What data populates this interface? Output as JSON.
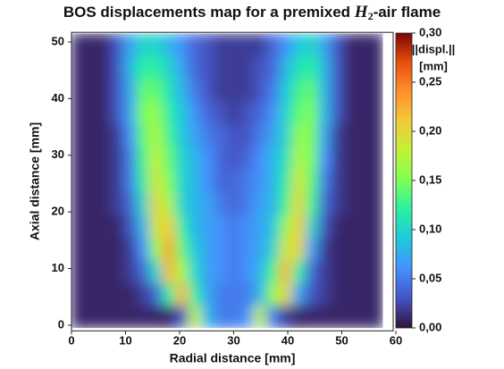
{
  "chart_data": {
    "type": "heatmap",
    "title": [
      "BOS displacements map for a premixed ",
      "H",
      "2",
      "-air flame"
    ],
    "x_label": "Radial distance [mm]",
    "y_label": "Axial distance [mm]",
    "colorbar_label": [
      "||displ.||",
      "[mm]"
    ],
    "xlim": [
      0,
      59.5
    ],
    "ylim": [
      -1,
      51.7
    ],
    "xticks": [
      0,
      10,
      20,
      30,
      40,
      50,
      60
    ],
    "yticks": [
      0,
      10,
      20,
      30,
      40,
      50
    ],
    "zlim": [
      0,
      0.3
    ],
    "zticks": [
      {
        "value": 0,
        "label": "0,00"
      },
      {
        "value": 0.05,
        "label": "0,05"
      },
      {
        "value": 0.1,
        "label": "0,10"
      },
      {
        "value": 0.15,
        "label": "0,15"
      },
      {
        "value": 0.2,
        "label": "0,20"
      },
      {
        "value": 0.25,
        "label": "0,25"
      },
      {
        "value": 0.3,
        "label": "0,30"
      }
    ],
    "colormap": [
      "#30123b",
      "#4454c4",
      "#4490fe",
      "#1fc8de",
      "#29efa2",
      "#7dff56",
      "#c1f334",
      "#f1ca3a",
      "#fe922a",
      "#ea4f0d",
      "#7a0403"
    ],
    "x": [
      1.2,
      3.6,
      6.0,
      8.4,
      10.8,
      13.2,
      15.6,
      18.0,
      20.4,
      22.8,
      25.2,
      27.6,
      30.0,
      32.4,
      34.8,
      37.2,
      39.6,
      42.0,
      44.4,
      46.8,
      49.2,
      51.6,
      54.0,
      56.4
    ],
    "y": [
      1.5,
      5.5,
      9.5,
      13.5,
      17.5,
      21.5,
      25.5,
      29.5,
      33.5,
      37.5,
      41.5,
      45.5,
      49.5
    ],
    "z": [
      [
        0.01,
        0.01,
        0.01,
        0.01,
        0.01,
        0.01,
        0.01,
        0.01,
        0.03,
        0.18,
        0.08,
        0.05,
        0.05,
        0.06,
        0.18,
        0.05,
        0.02,
        0.01,
        0.01,
        0.01,
        0.01,
        0.01,
        0.01,
        0.01
      ],
      [
        0.01,
        0.01,
        0.01,
        0.01,
        0.01,
        0.02,
        0.04,
        0.12,
        0.22,
        0.12,
        0.07,
        0.05,
        0.05,
        0.05,
        0.08,
        0.16,
        0.2,
        0.07,
        0.03,
        0.02,
        0.01,
        0.01,
        0.01,
        0.01
      ],
      [
        0.01,
        0.01,
        0.01,
        0.01,
        0.02,
        0.04,
        0.1,
        0.22,
        0.17,
        0.1,
        0.07,
        0.06,
        0.05,
        0.06,
        0.08,
        0.13,
        0.22,
        0.12,
        0.04,
        0.02,
        0.01,
        0.01,
        0.01,
        0.01
      ],
      [
        0.01,
        0.01,
        0.01,
        0.01,
        0.02,
        0.06,
        0.16,
        0.23,
        0.14,
        0.09,
        0.07,
        0.06,
        0.05,
        0.06,
        0.07,
        0.1,
        0.19,
        0.2,
        0.07,
        0.02,
        0.01,
        0.01,
        0.01,
        0.01
      ],
      [
        0.01,
        0.01,
        0.01,
        0.01,
        0.03,
        0.08,
        0.19,
        0.21,
        0.12,
        0.08,
        0.07,
        0.06,
        0.05,
        0.06,
        0.07,
        0.09,
        0.16,
        0.21,
        0.1,
        0.03,
        0.01,
        0.01,
        0.01,
        0.01
      ],
      [
        0.01,
        0.01,
        0.01,
        0.02,
        0.04,
        0.1,
        0.2,
        0.17,
        0.1,
        0.08,
        0.07,
        0.05,
        0.04,
        0.05,
        0.07,
        0.08,
        0.13,
        0.2,
        0.13,
        0.04,
        0.02,
        0.01,
        0.01,
        0.01
      ],
      [
        0.01,
        0.01,
        0.01,
        0.02,
        0.05,
        0.12,
        0.19,
        0.15,
        0.1,
        0.08,
        0.06,
        0.04,
        0.04,
        0.05,
        0.06,
        0.08,
        0.12,
        0.19,
        0.14,
        0.05,
        0.02,
        0.01,
        0.01,
        0.01
      ],
      [
        0.01,
        0.01,
        0.01,
        0.02,
        0.05,
        0.13,
        0.18,
        0.14,
        0.1,
        0.08,
        0.06,
        0.04,
        0.03,
        0.04,
        0.06,
        0.08,
        0.11,
        0.17,
        0.15,
        0.06,
        0.02,
        0.01,
        0.01,
        0.01
      ],
      [
        0.01,
        0.01,
        0.01,
        0.02,
        0.06,
        0.14,
        0.17,
        0.13,
        0.09,
        0.07,
        0.05,
        0.04,
        0.03,
        0.03,
        0.05,
        0.07,
        0.1,
        0.16,
        0.15,
        0.07,
        0.02,
        0.01,
        0.01,
        0.01
      ],
      [
        0.01,
        0.01,
        0.01,
        0.03,
        0.07,
        0.15,
        0.16,
        0.12,
        0.09,
        0.06,
        0.04,
        0.03,
        0.02,
        0.03,
        0.04,
        0.06,
        0.1,
        0.14,
        0.15,
        0.08,
        0.03,
        0.01,
        0.01,
        0.01
      ],
      [
        0.01,
        0.01,
        0.01,
        0.03,
        0.07,
        0.14,
        0.14,
        0.11,
        0.08,
        0.05,
        0.03,
        0.02,
        0.02,
        0.02,
        0.03,
        0.05,
        0.09,
        0.13,
        0.14,
        0.08,
        0.03,
        0.01,
        0.01,
        0.01
      ],
      [
        0.01,
        0.01,
        0.01,
        0.03,
        0.08,
        0.12,
        0.12,
        0.1,
        0.07,
        0.04,
        0.03,
        0.02,
        0.02,
        0.02,
        0.03,
        0.04,
        0.08,
        0.11,
        0.12,
        0.08,
        0.03,
        0.01,
        0.01,
        0.01
      ],
      [
        0.01,
        0.01,
        0.01,
        0.03,
        0.07,
        0.1,
        0.1,
        0.08,
        0.06,
        0.04,
        0.03,
        0.02,
        0.02,
        0.02,
        0.02,
        0.04,
        0.06,
        0.09,
        0.1,
        0.07,
        0.03,
        0.01,
        0.01,
        0.01
      ]
    ]
  }
}
